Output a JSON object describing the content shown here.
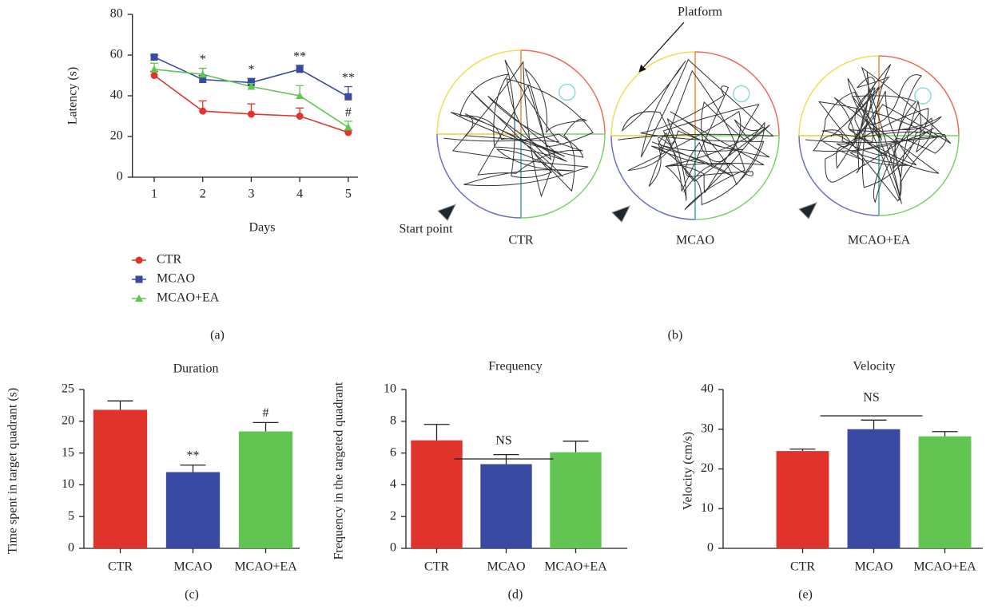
{
  "chart_data": [
    {
      "type": "line",
      "panel_label": "(a)",
      "xlabel": "Days",
      "ylabel": "Latency (s)",
      "x": [
        1,
        2,
        3,
        4,
        5
      ],
      "xlim": [
        0.55,
        5.2
      ],
      "xticks": [
        1,
        2,
        3,
        4,
        5
      ],
      "ylim": [
        0,
        80
      ],
      "yticks": [
        0,
        20,
        40,
        60,
        80
      ],
      "legend": "below",
      "series": [
        {
          "name": "CTR",
          "color": "#e0332b",
          "marker": "circle",
          "values": [
            50,
            32.5,
            31,
            30,
            22
          ],
          "errors": [
            2,
            5,
            5,
            4,
            1
          ]
        },
        {
          "name": "MCAO",
          "color": "#3a4aa3",
          "marker": "square",
          "values": [
            59,
            48,
            46.5,
            53,
            39.5
          ],
          "errors": [
            1,
            2,
            2,
            2,
            5
          ]
        },
        {
          "name": "MCAO+EA",
          "color": "#62c552",
          "marker": "triangle",
          "values": [
            53,
            50.5,
            44.5,
            40,
            24.5
          ],
          "errors": [
            3,
            3,
            1.5,
            5,
            3
          ]
        }
      ],
      "annotations": [
        {
          "text": "*",
          "x": 2,
          "series": 2
        },
        {
          "text": "*",
          "x": 3,
          "series": 1
        },
        {
          "text": "**",
          "x": 4,
          "series": 1
        },
        {
          "text": "**",
          "x": 5,
          "series": 1
        },
        {
          "text": "#",
          "x": 5,
          "series": 2
        }
      ]
    },
    {
      "type": "bar",
      "title": "Duration",
      "panel_label": "(c)",
      "ylabel": "Time spent in target quadrant (s)",
      "categories": [
        "CTR",
        "MCAO",
        "MCAO+EA"
      ],
      "values": [
        21.8,
        12,
        18.4
      ],
      "errors": [
        1.4,
        1.1,
        1.4
      ],
      "colors": [
        "#e0332b",
        "#3a4aa3",
        "#62c552"
      ],
      "ylim": [
        0,
        25
      ],
      "yticks": [
        0,
        5,
        10,
        15,
        20,
        25
      ],
      "annotations": [
        {
          "text": "**",
          "category": 1
        },
        {
          "text": "#",
          "category": 2
        }
      ]
    },
    {
      "type": "bar",
      "title": "Frequency",
      "panel_label": "(d)",
      "ylabel": "Frequency in the targeted quadrant",
      "categories": [
        "CTR",
        "MCAO",
        "MCAO+EA"
      ],
      "values": [
        6.8,
        5.3,
        6.05
      ],
      "errors": [
        1.0,
        0.6,
        0.7
      ],
      "colors": [
        "#e0332b",
        "#3a4aa3",
        "#62c552"
      ],
      "ylim": [
        0,
        10
      ],
      "yticks": [
        0,
        2,
        4,
        6,
        8,
        10
      ],
      "annotations": [
        {
          "text": "NS",
          "span": [
            0,
            2
          ]
        }
      ]
    },
    {
      "type": "bar",
      "title": "Velocity",
      "panel_label": "(e)",
      "ylabel": "Velocity (cm/s)",
      "categories": [
        "CTR",
        "MCAO",
        "MCAO+EA"
      ],
      "values": [
        24.5,
        30,
        28.2
      ],
      "errors": [
        0.5,
        2.3,
        1.2
      ],
      "colors": [
        "#e0332b",
        "#3a4aa3",
        "#62c552"
      ],
      "ylim": [
        0,
        40
      ],
      "yticks": [
        0,
        10,
        20,
        30,
        40
      ],
      "annotations": [
        {
          "text": "NS",
          "span": [
            0,
            2
          ]
        }
      ]
    }
  ],
  "trajectories": {
    "panel_label": "(b)",
    "platform": "Platform",
    "start": "Start point",
    "groups": [
      "CTR",
      "MCAO",
      "MCAO+EA"
    ]
  }
}
